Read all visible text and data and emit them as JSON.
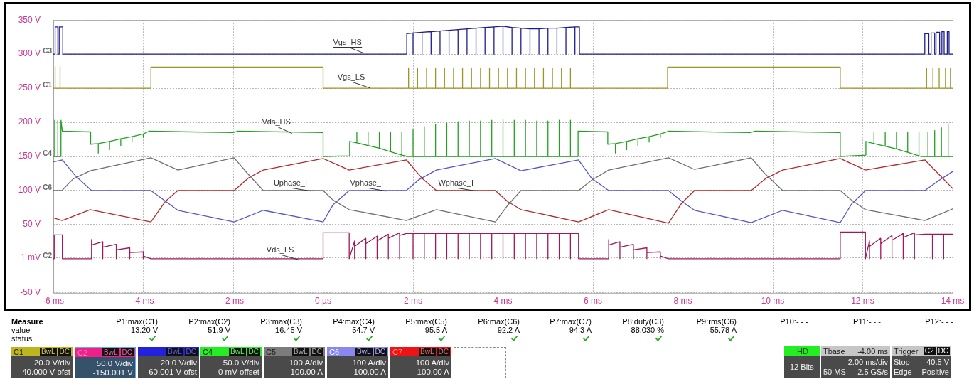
{
  "chart_data": {
    "type": "line",
    "xlim": [
      -6,
      14
    ],
    "xticks": [
      {
        "value": -6,
        "label": "-6 ms"
      },
      {
        "value": -4,
        "label": "-4 ms"
      },
      {
        "value": -2,
        "label": "-2 ms"
      },
      {
        "value": 0,
        "label": "0 µs"
      },
      {
        "value": 2,
        "label": "2 ms"
      },
      {
        "value": 4,
        "label": "4 ms"
      },
      {
        "value": 6,
        "label": "6 ms"
      },
      {
        "value": 8,
        "label": "8 ms"
      },
      {
        "value": 10,
        "label": "10 ms"
      },
      {
        "value": 12,
        "label": "12 ms"
      },
      {
        "value": 14,
        "label": "14 ms"
      }
    ],
    "ylim": [
      -50,
      350
    ],
    "yticks": [
      {
        "value": -50,
        "label": "-50 V"
      },
      {
        "value": 1,
        "label": "1 mV"
      },
      {
        "value": 50,
        "label": "50 V"
      },
      {
        "value": 100,
        "label": "100 V"
      },
      {
        "value": 150,
        "label": "150 V"
      },
      {
        "value": 200,
        "label": "200 V"
      },
      {
        "value": 250,
        "label": "250 V"
      },
      {
        "value": 300,
        "label": "300 V"
      },
      {
        "value": 350,
        "label": "350 V"
      }
    ],
    "grid": true,
    "marker": "none",
    "line_style": "solid",
    "series": [
      {
        "name": "Vgs_HS",
        "color": "#1e1e8c",
        "x": [
          -6,
          -5.96,
          -5.96,
          -5.9,
          -5.9,
          -5.87,
          -5.87,
          -5.79,
          -5.79,
          1.86,
          1.86,
          2,
          2,
          2,
          2.2,
          2.2,
          2.2,
          2.4,
          2.4,
          2.4,
          2.6,
          2.6,
          2.6,
          2.8,
          2.8,
          2.8,
          3,
          3,
          3,
          3.2,
          3.2,
          3.2,
          3.4,
          3.4,
          3.4,
          3.6,
          3.6,
          3.6,
          3.8,
          3.8,
          3.8,
          4,
          4,
          4,
          4.2,
          4.2,
          4.2,
          4.4,
          4.4,
          4.4,
          4.6,
          4.6,
          4.6,
          4.8,
          4.8,
          4.8,
          5,
          5,
          5,
          5.2,
          5.2,
          5.2,
          5.4,
          5.4,
          5.4,
          5.6,
          5.6,
          5.6,
          5.7,
          5.7,
          13.38,
          13.38,
          13.47,
          13.47,
          13.52,
          13.52,
          13.6,
          13.6,
          13.63,
          13.63,
          13.71,
          13.71,
          13.76,
          13.76,
          13.81,
          13.81,
          13.88,
          13.88,
          13.92,
          13.92,
          14
        ],
        "values": [
          300,
          300,
          340,
          340,
          300,
          300,
          340,
          340,
          300,
          300,
          330,
          331,
          300,
          331,
          332,
          300,
          332,
          333,
          300,
          333,
          334,
          300,
          334,
          335,
          300,
          335,
          336,
          300,
          336,
          337,
          300,
          337,
          338,
          300,
          338,
          339,
          300,
          339,
          340,
          300,
          340,
          341,
          300,
          341,
          339,
          300,
          339,
          338,
          300,
          338,
          337,
          300,
          337,
          337,
          300,
          337,
          338,
          300,
          338,
          338,
          300,
          338,
          339,
          300,
          339,
          340,
          300,
          340,
          340,
          300,
          300,
          330,
          330,
          300,
          300,
          331,
          331,
          300,
          300,
          332,
          332,
          300,
          300,
          333,
          333,
          300,
          300,
          333,
          333,
          300,
          300
        ]
      },
      {
        "name": "Vgs_LS",
        "color": "#9c9628",
        "x": [
          -6,
          -5.96,
          -5.96,
          -5.96,
          -5.85,
          -5.85,
          -5.85,
          -3.83,
          -3.83,
          0,
          0,
          1.87,
          1.9,
          1.9,
          1.9,
          2.1,
          2.1,
          2.1,
          2.3,
          2.3,
          2.3,
          2.5,
          2.5,
          2.5,
          2.7,
          2.7,
          2.7,
          2.9,
          2.9,
          2.9,
          3.1,
          3.1,
          3.1,
          3.3,
          3.3,
          3.3,
          3.5,
          3.5,
          3.5,
          3.7,
          3.7,
          3.7,
          3.9,
          3.9,
          3.9,
          4.1,
          4.1,
          4.1,
          4.3,
          4.3,
          4.3,
          4.5,
          4.5,
          4.5,
          4.7,
          4.7,
          4.7,
          4.9,
          4.9,
          4.9,
          5.1,
          5.1,
          5.1,
          5.3,
          5.3,
          5.3,
          5.5,
          5.5,
          5.5,
          7.66,
          7.66,
          11.5,
          11.5,
          13.38,
          13.42,
          13.42,
          13.42,
          13.56,
          13.56,
          13.56,
          13.7,
          13.7,
          13.7,
          13.84,
          13.84,
          13.84,
          13.95,
          13.95,
          13.95,
          14
        ],
        "values": [
          250,
          250,
          282,
          250,
          250,
          282,
          250,
          250,
          281,
          281,
          250,
          250,
          250,
          280,
          250,
          250,
          280,
          250,
          250,
          280,
          250,
          250,
          280,
          250,
          250,
          280,
          250,
          250,
          280,
          250,
          250,
          280,
          250,
          250,
          280,
          250,
          250,
          280,
          250,
          250,
          280,
          250,
          250,
          280,
          250,
          250,
          280,
          250,
          250,
          280,
          250,
          250,
          280,
          250,
          250,
          280,
          250,
          250,
          280,
          250,
          250,
          280,
          250,
          250,
          280,
          250,
          250,
          280,
          250,
          250,
          281,
          281,
          250,
          250,
          250,
          280,
          250,
          250,
          280,
          250,
          250,
          280,
          250,
          250,
          280,
          250,
          250,
          280,
          250,
          250
        ]
      },
      {
        "name": "Vds_HS",
        "color": "#22a022",
        "x": [
          -6,
          -5.97,
          -5.97,
          -5.97,
          -5.9,
          -5.9,
          -5.9,
          -5.83,
          -5.83,
          -5.8,
          -5.17,
          -5.17,
          -5,
          -5,
          -5,
          -4.75,
          -4.75,
          -4.75,
          -4.5,
          -4.5,
          -4.5,
          -4.25,
          -4.25,
          -4.25,
          -4,
          -4,
          -4,
          -3.87,
          -2,
          -1.9,
          0,
          0,
          0.59,
          0.59,
          0.75,
          0.75,
          0.75,
          1,
          1,
          1,
          1.25,
          1.25,
          1.25,
          1.5,
          1.5,
          1.5,
          1.75,
          1.75,
          1.75,
          1.87,
          2,
          2,
          2,
          2.25,
          2.25,
          2.25,
          2.5,
          2.5,
          2.5,
          2.75,
          2.75,
          2.75,
          3,
          3,
          3,
          3.25,
          3.25,
          3.25,
          3.5,
          3.5,
          3.5,
          3.75,
          3.75,
          3.75,
          4,
          4,
          4,
          4.25,
          4.25,
          4.25,
          4.5,
          4.5,
          4.5,
          4.75,
          4.75,
          4.75,
          5,
          5,
          5,
          5.25,
          5.25,
          5.25,
          5.5,
          5.5,
          5.5,
          5.67,
          5.67,
          6.33,
          6.33,
          6.5,
          6.5,
          6.5,
          6.75,
          6.75,
          6.75,
          7,
          7,
          7,
          7.25,
          7.25,
          7.25,
          7.5,
          7.5,
          7.5,
          7.68,
          9.5,
          9.6,
          11.5,
          11.5,
          12.07,
          12.07,
          12.25,
          12.25,
          12.25,
          12.5,
          12.5,
          12.5,
          12.75,
          12.75,
          12.75,
          13,
          13,
          13,
          13.25,
          13.25,
          13.25,
          13.32,
          13.45,
          13.45,
          13.45,
          13.6,
          13.6,
          13.6,
          13.75,
          13.75,
          13.75,
          13.9,
          13.9,
          13.9,
          14
        ],
        "values": [
          150,
          150,
          203,
          150,
          150,
          203,
          150,
          150,
          203,
          187,
          186,
          168,
          169,
          155,
          169,
          172,
          160,
          172,
          176,
          166,
          176,
          179,
          171,
          179,
          183,
          178,
          183,
          187,
          185,
          187,
          185,
          150,
          151,
          172,
          170,
          185,
          170,
          166,
          185,
          166,
          162,
          185,
          162,
          157,
          185,
          157,
          152,
          185,
          152,
          150,
          150,
          190,
          150,
          150,
          194,
          150,
          150,
          197,
          150,
          150,
          199,
          150,
          150,
          201,
          150,
          150,
          202,
          150,
          150,
          202,
          150,
          150,
          203,
          150,
          150,
          204,
          150,
          150,
          203,
          150,
          150,
          203,
          150,
          150,
          202,
          150,
          150,
          202,
          150,
          150,
          203,
          150,
          150,
          203,
          150,
          150,
          187,
          186,
          168,
          169,
          155,
          169,
          172,
          160,
          172,
          176,
          166,
          176,
          179,
          171,
          179,
          183,
          178,
          183,
          187,
          185,
          187,
          185,
          150,
          152,
          172,
          169,
          185,
          169,
          165,
          185,
          165,
          161,
          185,
          161,
          156,
          185,
          156,
          151,
          185,
          151,
          150,
          150,
          186,
          150,
          150,
          188,
          150,
          150,
          192,
          150,
          150,
          197,
          150,
          150
        ]
      },
      {
        "name": "Uphase_I",
        "color": "#6e6e6e",
        "x": [
          -6,
          -5.81,
          -5.56,
          -5.18,
          -3.83,
          -3.23,
          -1.98,
          -1.68,
          -1.33,
          0,
          0.22,
          0.58,
          1.85,
          2.52,
          3.83,
          4.1,
          4.4,
          5.68,
          5.97,
          6.35,
          7.68,
          8.26,
          9.52,
          9.82,
          10.22,
          11.5,
          11.75,
          12.06,
          13.38,
          14
        ],
        "values": [
          100,
          100,
          117,
          129,
          148,
          130,
          148,
          125,
          100,
          100,
          86,
          72,
          56,
          72,
          54,
          78,
          100,
          100,
          115,
          130,
          148,
          131,
          148,
          125,
          100,
          100,
          86,
          72,
          56,
          73
        ]
      },
      {
        "name": "Vphase_I",
        "color": "#5555cc",
        "x": [
          -6,
          -5.8,
          -5.5,
          -5.15,
          -3.83,
          -3.5,
          -3.23,
          -1.98,
          -1.33,
          0,
          0.22,
          0.58,
          1.85,
          2.13,
          2.52,
          3.83,
          4.4,
          5.68,
          5.97,
          6.35,
          7.68,
          7.98,
          8.26,
          9.52,
          10.22,
          11.5,
          11.75,
          12.06,
          13.38,
          13.7,
          14
        ],
        "values": [
          142,
          145,
          121,
          100,
          100,
          84,
          71,
          54,
          71,
          54,
          79,
          100,
          100,
          116,
          130,
          147,
          129,
          145,
          118,
          100,
          100,
          84,
          71,
          53,
          71,
          53,
          80,
          100,
          100,
          115,
          128
        ]
      },
      {
        "name": "Wphase_I",
        "color": "#b22a2a",
        "x": [
          -6,
          -5.8,
          -5.18,
          -3.83,
          -3.51,
          -3.23,
          -1.98,
          -1.65,
          -1.33,
          0,
          0.58,
          1.85,
          2.2,
          2.52,
          3.83,
          4.1,
          4.4,
          5.68,
          6.35,
          7.68,
          7.98,
          8.26,
          9.52,
          9.85,
          10.22,
          11.5,
          12.06,
          13.38,
          14
        ],
        "values": [
          60,
          56,
          72,
          54,
          84,
          100,
          100,
          119,
          130,
          147,
          130,
          145,
          118,
          100,
          100,
          84,
          72,
          54,
          72,
          52,
          82,
          100,
          100,
          118,
          130,
          147,
          130,
          145,
          103
        ]
      },
      {
        "name": "Vds_LS",
        "color": "#a01858",
        "x": [
          -6,
          -5.98,
          -5.98,
          -5.8,
          -5.8,
          -5.15,
          -5.15,
          -5.15,
          -5.15,
          -4.9,
          -4.9,
          -4.9,
          -4.6,
          -4.6,
          -4.6,
          -4.3,
          -4.3,
          -4.3,
          -4,
          -4,
          -4,
          -3.83,
          0,
          0,
          0.58,
          0.58,
          0.7,
          0.7,
          0.7,
          0.95,
          0.95,
          0.95,
          1.2,
          1.2,
          1.2,
          1.45,
          1.45,
          1.45,
          1.7,
          1.7,
          1.7,
          1.85,
          2,
          2,
          2,
          2.25,
          2.25,
          2.25,
          2.5,
          2.5,
          2.5,
          2.75,
          2.75,
          2.75,
          3,
          3,
          3,
          3.25,
          3.25,
          3.25,
          3.5,
          3.5,
          3.5,
          3.75,
          3.75,
          3.75,
          4,
          4,
          4,
          4.25,
          4.25,
          4.25,
          4.5,
          4.5,
          4.5,
          4.75,
          4.75,
          4.75,
          5,
          5,
          5,
          5.25,
          5.25,
          5.25,
          5.5,
          5.5,
          5.5,
          5.68,
          5.68,
          6.35,
          6.35,
          6.35,
          6.35,
          6.6,
          6.6,
          6.6,
          6.9,
          6.9,
          6.9,
          7.2,
          7.2,
          7.2,
          7.5,
          7.5,
          7.5,
          7.68,
          11.5,
          11.5,
          12.06,
          12.06,
          12.15,
          12.15,
          12.15,
          12.4,
          12.4,
          12.4,
          12.65,
          12.65,
          12.65,
          12.9,
          12.9,
          12.9,
          13.15,
          13.15,
          13.15,
          13.38,
          13.55,
          13.55,
          13.55,
          13.8,
          13.8,
          13.8,
          14
        ],
        "values": [
          0,
          0,
          35,
          35,
          0,
          0,
          28,
          0,
          20,
          25,
          0,
          17,
          21,
          0,
          13,
          16,
          0,
          9,
          10,
          0,
          4,
          0,
          0,
          38,
          38,
          0,
          26,
          0,
          18,
          30,
          0,
          22,
          33,
          0,
          26,
          36,
          0,
          30,
          38,
          0,
          34,
          37,
          37,
          0,
          37,
          37,
          0,
          37,
          37,
          0,
          37,
          37,
          0,
          37,
          37,
          0,
          37,
          37,
          0,
          37,
          37,
          0,
          37,
          37,
          0,
          37,
          37,
          0,
          37,
          37,
          0,
          37,
          37,
          0,
          37,
          37,
          0,
          37,
          37,
          0,
          37,
          37,
          0,
          37,
          37,
          0,
          37,
          37,
          0,
          0,
          28,
          0,
          20,
          25,
          0,
          17,
          21,
          0,
          13,
          16,
          0,
          9,
          10,
          0,
          4,
          0,
          0,
          39,
          39,
          0,
          26,
          0,
          18,
          30,
          0,
          22,
          34,
          0,
          27,
          37,
          0,
          31,
          38,
          0,
          35,
          36,
          36,
          0,
          36,
          36,
          0,
          36,
          36
        ]
      }
    ],
    "annotations": [
      "C3",
      "C1",
      "C4",
      "C6",
      "C2",
      "Measure",
      "P1:max(C1)",
      "P2:max(C2)",
      "P3:max(C3)",
      "P4:max(C4)",
      "P5:max(C5)",
      "P6:max(C6)",
      "P7:max(C7)",
      "P8:duty(C3)",
      "P9:rms(C6)",
      "P10:- - -",
      "P11:- - -",
      "P12:- - -",
      "value",
      "13.20 V",
      "51.9 V",
      "16.45 V",
      "54.7 V",
      "95.5 A",
      "92.2 A",
      "94.3 A",
      "88.030 %",
      "55.78 A",
      "status",
      "C1",
      "BwL",
      "DC",
      "20.0 V/div",
      "40.000 V ofst",
      "C2",
      "BwL",
      "DC",
      "50.0 V/div",
      "-150.001 V",
      "BwL",
      "DC",
      "20.0 V/div",
      "60.001 V ofst",
      "C4",
      "BwL",
      "DC",
      "50.0 V/div",
      "0 mV offset",
      "C5",
      "BwL",
      "DC",
      "100 A/div",
      "-100.00 A",
      "C6",
      "BwL",
      "DC",
      "100 A/div",
      "-100.00 A",
      "C7",
      "BwL",
      "DC",
      "100 A/div",
      "-100.00 A",
      "HD",
      "12 Bits",
      "Tbase",
      "-4.00 ms",
      "Trigger",
      "C2",
      "DC",
      "2.00 ms/div",
      "Stop",
      "40.5 V",
      "50 MS",
      "2.5 GS/s",
      "Edge",
      "Positive"
    ]
  }
}
